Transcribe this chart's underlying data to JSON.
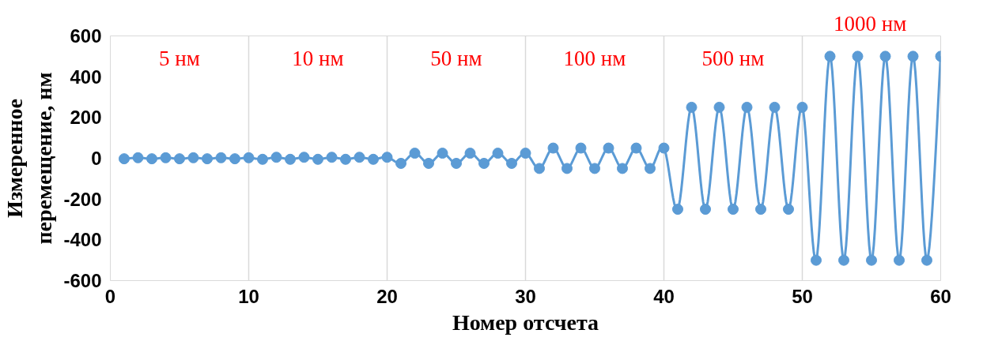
{
  "chart_data": {
    "type": "line",
    "xlabel": "Номер отсчета",
    "ylabel": "Измеренное\nперемещение, нм",
    "x": [
      1,
      2,
      3,
      4,
      5,
      6,
      7,
      8,
      9,
      10,
      11,
      12,
      13,
      14,
      15,
      16,
      17,
      18,
      19,
      20,
      21,
      22,
      23,
      24,
      25,
      26,
      27,
      28,
      29,
      30,
      31,
      32,
      33,
      34,
      35,
      36,
      37,
      38,
      39,
      40,
      41,
      42,
      43,
      44,
      45,
      46,
      47,
      48,
      49,
      50,
      51,
      52,
      53,
      54,
      55,
      56,
      57,
      58,
      59,
      60
    ],
    "series": [
      {
        "color": "#5b9bd5",
        "values": [
          -2.5,
          2.5,
          -2.5,
          2.5,
          -2.5,
          2.5,
          -2.5,
          2.5,
          -2.5,
          2.5,
          -5,
          5,
          -5,
          5,
          -5,
          5,
          -5,
          5,
          -5,
          5,
          -25,
          25,
          -25,
          25,
          -25,
          25,
          -25,
          25,
          -25,
          25,
          -50,
          50,
          -50,
          50,
          -50,
          50,
          -50,
          50,
          -50,
          50,
          -250,
          250,
          -250,
          250,
          -250,
          250,
          -250,
          250,
          -250,
          250,
          -500,
          500,
          -500,
          500,
          -500,
          500,
          -500,
          500,
          -500,
          500
        ]
      }
    ],
    "marker": "circle",
    "grid": "x",
    "xlim": [
      0,
      60
    ],
    "ylim": [
      -600,
      600
    ],
    "xticks": [
      0,
      10,
      20,
      30,
      40,
      50,
      60
    ],
    "yticks": [
      -600,
      -400,
      -200,
      0,
      200,
      400,
      600
    ],
    "annotations": [
      "5 нм",
      "10 нм",
      "50 нм",
      "100 нм",
      "500 нм",
      "1000 нм"
    ]
  }
}
